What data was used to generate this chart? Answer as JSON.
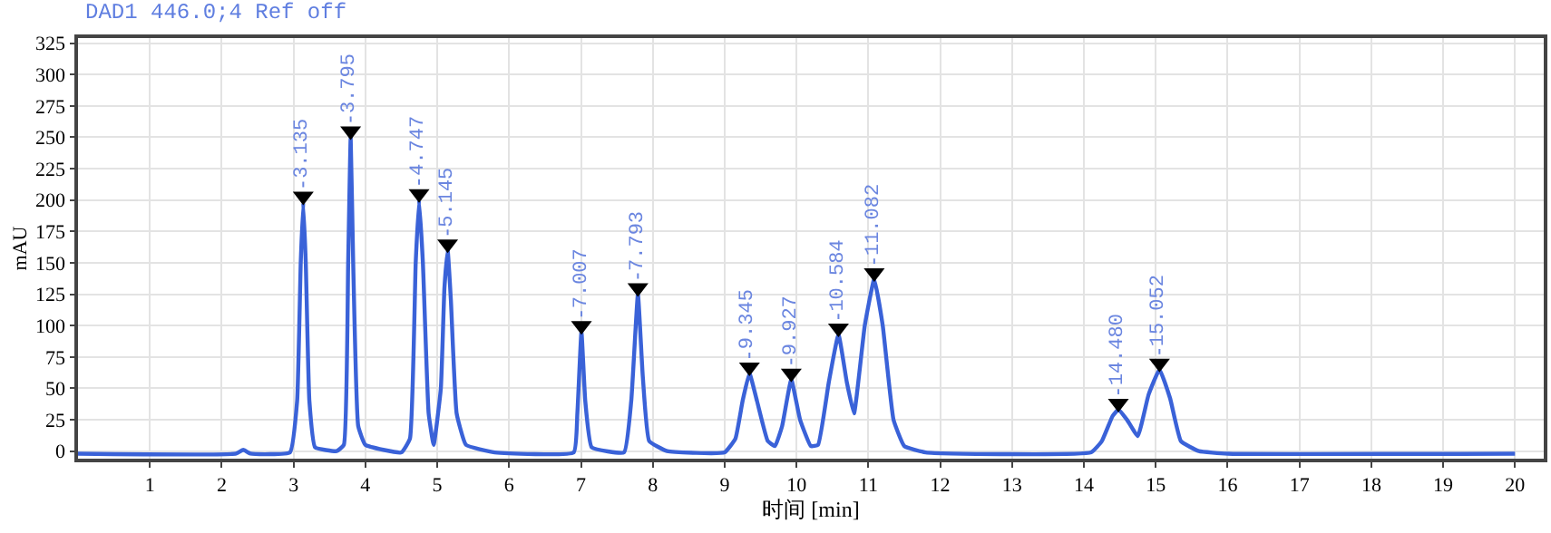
{
  "chart_data": {
    "type": "line",
    "title": "DAD1 446.0;4 Ref off",
    "xlabel": "时间 [min]",
    "ylabel": "mAU",
    "x": [
      0,
      2.2,
      2.3,
      2.4,
      2.95,
      3.05,
      3.1,
      3.135,
      3.17,
      3.22,
      3.3,
      3.6,
      3.7,
      3.76,
      3.795,
      3.83,
      3.9,
      4.0,
      4.5,
      4.62,
      4.7,
      4.747,
      4.8,
      4.88,
      4.95,
      5.05,
      5.1,
      5.145,
      5.19,
      5.27,
      5.4,
      5.8,
      6.9,
      6.95,
      7.007,
      7.06,
      7.15,
      7.6,
      7.7,
      7.793,
      7.86,
      7.95,
      8.2,
      9.0,
      9.15,
      9.25,
      9.345,
      9.45,
      9.6,
      9.7,
      9.8,
      9.927,
      10.05,
      10.2,
      10.3,
      10.45,
      10.584,
      10.7,
      10.8,
      10.95,
      11.082,
      11.2,
      11.35,
      11.5,
      11.8,
      14.1,
      14.25,
      14.4,
      14.48,
      14.6,
      14.75,
      14.9,
      15.052,
      15.2,
      15.35,
      15.6,
      16,
      20
    ],
    "series": [
      {
        "color": "#3a62d8",
        "values": [
          -2,
          -2,
          1,
          -2,
          -1,
          40,
          150,
          198,
          150,
          40,
          3,
          0,
          5,
          150,
          250,
          150,
          20,
          5,
          -1,
          10,
          150,
          200,
          150,
          30,
          5,
          50,
          130,
          160,
          120,
          30,
          5,
          -1,
          -1,
          30,
          95,
          40,
          3,
          -1,
          40,
          125,
          60,
          8,
          0,
          -1,
          10,
          40,
          62,
          40,
          8,
          4,
          20,
          57,
          25,
          4,
          5,
          55,
          93,
          55,
          30,
          100,
          137,
          100,
          25,
          4,
          -1,
          -1,
          8,
          28,
          33,
          25,
          12,
          45,
          65,
          42,
          8,
          0,
          -2,
          -2
        ]
      },
      {
        "type": "scatter",
        "color": "#000000",
        "marker": "triangle",
        "x": [
          3.135,
          3.795,
          4.747,
          5.145,
          7.007,
          7.793,
          9.345,
          9.927,
          10.584,
          11.082,
          14.48,
          15.052
        ],
        "values": [
          203,
          255,
          205,
          165,
          100,
          130,
          67,
          62,
          98,
          142,
          38,
          70
        ]
      }
    ],
    "annotations": [
      {
        "text": "3.135",
        "x": 3.135,
        "y": 203
      },
      {
        "text": "3.795",
        "x": 3.795,
        "y": 255
      },
      {
        "text": "4.747",
        "x": 4.747,
        "y": 205
      },
      {
        "text": "5.145",
        "x": 5.145,
        "y": 165
      },
      {
        "text": "7.007",
        "x": 7.007,
        "y": 100
      },
      {
        "text": "7.793",
        "x": 7.793,
        "y": 130
      },
      {
        "text": "9.345",
        "x": 9.345,
        "y": 67
      },
      {
        "text": "9.927",
        "x": 9.927,
        "y": 62
      },
      {
        "text": "10.584",
        "x": 10.584,
        "y": 98
      },
      {
        "text": "11.082",
        "x": 11.082,
        "y": 142
      },
      {
        "text": "14.480",
        "x": 14.48,
        "y": 38
      },
      {
        "text": "15.052",
        "x": 15.052,
        "y": 70
      }
    ],
    "xlim": [
      0,
      20.4
    ],
    "xticks": [
      1,
      2,
      3,
      4,
      5,
      6,
      7,
      8,
      9,
      10,
      11,
      12,
      13,
      14,
      15,
      16,
      17,
      18,
      19,
      20
    ],
    "ylim": [
      -6,
      329
    ],
    "yticks": [
      0,
      25,
      50,
      75,
      100,
      125,
      150,
      175,
      200,
      225,
      250,
      275,
      300,
      325
    ],
    "grid": true,
    "marker": "none",
    "line_style": "solid"
  }
}
